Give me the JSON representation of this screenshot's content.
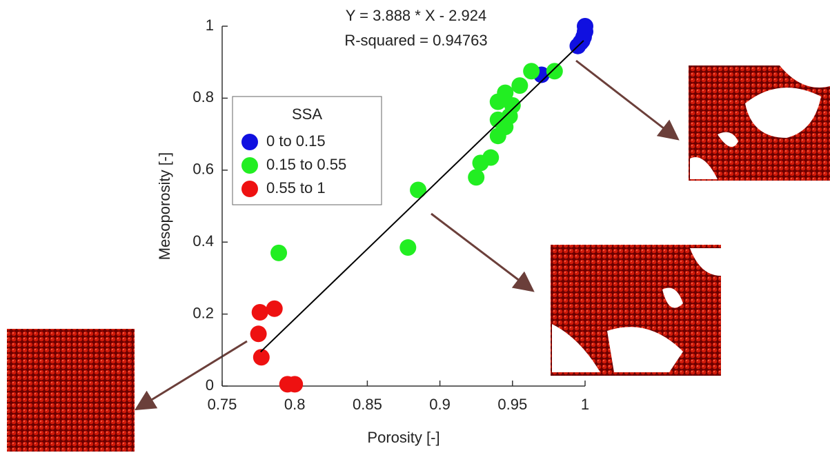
{
  "chart_data": {
    "type": "scatter",
    "equation": "Y = 3.888 * X - 2.924",
    "r_squared": "R-squared = 0.94763",
    "x_label": "Porosity [-]",
    "y_label": "Mesoporosity [-]",
    "legend_title": "SSA",
    "xlim": [
      0.75,
      1
    ],
    "xticks": [
      0.75,
      0.8,
      0.85,
      0.9,
      0.95,
      1
    ],
    "ylim": [
      0,
      1
    ],
    "yticks": [
      0,
      0.2,
      0.4,
      0.6,
      0.8,
      1
    ],
    "series": [
      {
        "name": "0 to 0.15",
        "color": "#1010e0",
        "x": [
          0.97,
          0.995,
          0.997,
          0.999,
          1.0,
          1.0,
          0.998
        ],
        "values": [
          0.865,
          0.945,
          0.955,
          0.97,
          1.0,
          0.985,
          0.96
        ]
      },
      {
        "name": "0.15 to 0.55",
        "color": "#22ee22",
        "x": [
          0.963,
          0.979,
          0.955,
          0.945,
          0.94,
          0.95,
          0.948,
          0.94,
          0.945,
          0.94,
          0.935,
          0.928,
          0.925,
          0.885,
          0.878,
          0.789
        ],
        "values": [
          0.875,
          0.875,
          0.835,
          0.815,
          0.79,
          0.78,
          0.75,
          0.74,
          0.72,
          0.695,
          0.635,
          0.62,
          0.58,
          0.545,
          0.385,
          0.37
        ]
      },
      {
        "name": "0.55 to 1",
        "color": "#ee1111",
        "x": [
          0.776,
          0.786,
          0.775,
          0.777,
          0.795,
          0.8
        ],
        "values": [
          0.205,
          0.215,
          0.145,
          0.08,
          0.005,
          0.005
        ]
      }
    ],
    "fit_line": {
      "x": [
        0.7765,
        0.999
      ],
      "values": [
        0.095,
        0.96
      ]
    }
  }
}
